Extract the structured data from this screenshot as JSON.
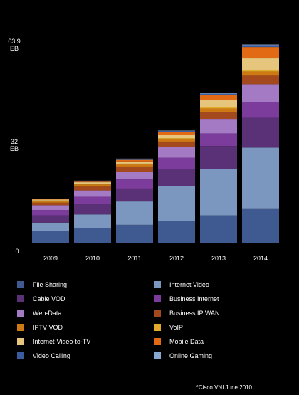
{
  "chart_data": {
    "type": "bar",
    "stacked": true,
    "categories": [
      "2009",
      "2010",
      "2011",
      "2012",
      "2013",
      "2014"
    ],
    "ylim": [
      0,
      63.9
    ],
    "yticks": [
      {
        "value": 0,
        "label": "0",
        "unit": ""
      },
      {
        "value": 32,
        "label": "32",
        "unit": "EB"
      },
      {
        "value": 63.9,
        "label": "63.9",
        "unit": "EB"
      }
    ],
    "grid": false,
    "legend_position": "bottom",
    "series": [
      {
        "name": "File Sharing",
        "color": "#3e5a91",
        "values": [
          4.0,
          4.8,
          5.9,
          7.1,
          8.9,
          11.1
        ]
      },
      {
        "name": "Internet Video",
        "color": "#7b96bf",
        "values": [
          2.6,
          4.4,
          7.4,
          11.1,
          14.7,
          19.3
        ]
      },
      {
        "name": "Cable VOD",
        "color": "#5a3076",
        "values": [
          2.3,
          3.4,
          4.1,
          5.5,
          7.3,
          9.4
        ]
      },
      {
        "name": "Business Internet",
        "color": "#7c3c9c",
        "values": [
          1.7,
          2.2,
          2.9,
          3.5,
          4.0,
          5.0
        ]
      },
      {
        "name": "Web-Data",
        "color": "#a57ac5",
        "values": [
          1.5,
          2.0,
          2.5,
          3.5,
          4.6,
          5.7
        ]
      },
      {
        "name": "Business IP WAN",
        "color": "#a4481d",
        "values": [
          0.8,
          1.2,
          1.6,
          1.6,
          2.1,
          2.7
        ]
      },
      {
        "name": "IPTV VOD",
        "color": "#cd7a14",
        "values": [
          0.5,
          0.7,
          0.7,
          0.8,
          1.2,
          1.3
        ]
      },
      {
        "name": "VoIP",
        "color": "#e2aa2b",
        "values": [
          0.2,
          0.2,
          0.2,
          0.3,
          0.4,
          0.5
        ]
      },
      {
        "name": "Internet-Video-to-TV",
        "color": "#e6c57c",
        "values": [
          0.3,
          0.5,
          0.7,
          1.0,
          2.2,
          3.7
        ]
      },
      {
        "name": "Mobile Data",
        "color": "#e36a14",
        "values": [
          0.1,
          0.2,
          0.5,
          0.9,
          1.6,
          3.6
        ]
      },
      {
        "name": "Video Calling",
        "color": "#3a5c9e",
        "values": [
          0.1,
          0.2,
          0.3,
          0.4,
          0.5,
          0.6
        ]
      },
      {
        "name": "Online Gaming",
        "color": "#8aa8cf",
        "values": [
          0.1,
          0.1,
          0.1,
          0.1,
          0.2,
          0.2
        ]
      }
    ],
    "legend_layout": [
      [
        "File Sharing",
        "Internet Video"
      ],
      [
        "Cable VOD",
        "Business Internet"
      ],
      [
        "Web-Data",
        "Business IP WAN"
      ],
      [
        "IPTV VOD",
        "VoIP"
      ],
      [
        "Internet-Video-to-TV",
        "Mobile Data"
      ],
      [
        "Video Calling",
        "Online Gaming"
      ]
    ]
  },
  "source_note": "*Cisco VNI June 2010"
}
